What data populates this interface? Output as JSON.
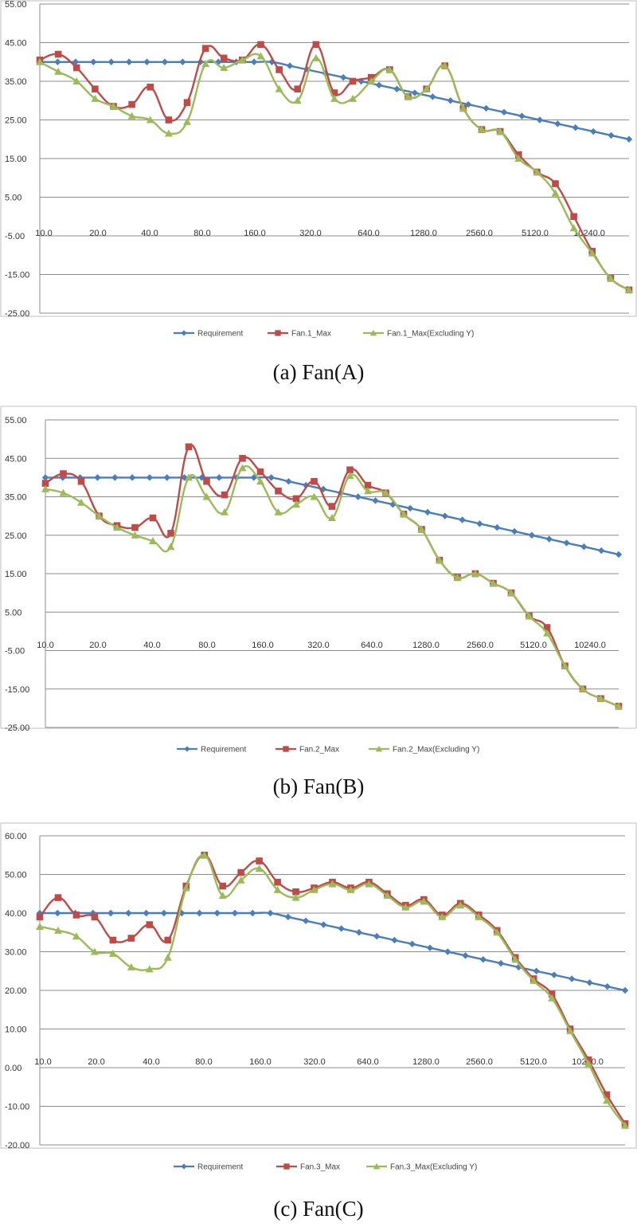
{
  "colors": {
    "requirement": "#4a7ebb",
    "max": "#be4b48",
    "excl": "#9bbb59",
    "grid": "#8c8c8c",
    "frame": "#bfbfbf"
  },
  "chart_data": [
    {
      "type": "line",
      "title": "",
      "caption": "(a) Fan(A)",
      "xlabel": "",
      "ylabel": "",
      "ylim": [
        -25,
        55
      ],
      "y_ticks": [
        "55.00",
        "45.00",
        "35.00",
        "25.00",
        "15.00",
        "5.00",
        "-5.00",
        "-15.00",
        "-25.00"
      ],
      "x_tick_labels": [
        "10.0",
        "20.0",
        "40.0",
        "80.0",
        "160.0",
        "320.0",
        "640.0",
        "1280.0",
        "2560.0",
        "5120.0",
        "10240.0"
      ],
      "series": [
        {
          "name": "Requirement",
          "marker": "diamond",
          "values": [
            40,
            40,
            40,
            40,
            40,
            40,
            40,
            40,
            40,
            40,
            40,
            40,
            40,
            40,
            39,
            38,
            37,
            36,
            35,
            34,
            33,
            32,
            31,
            30,
            29,
            28,
            27,
            26,
            25,
            24,
            23,
            22,
            21,
            20
          ]
        },
        {
          "name": "Fan.1_Max",
          "marker": "square",
          "values": [
            40.5,
            42,
            38.5,
            33,
            28.5,
            29,
            33.5,
            25,
            29.5,
            43.5,
            41,
            40.5,
            44.5,
            38,
            33,
            44.5,
            32,
            35,
            36,
            38,
            31,
            33,
            39,
            28,
            22.5,
            22,
            16,
            11.5,
            8.5,
            0,
            -9,
            -16,
            -19
          ]
        },
        {
          "name": "Fan.1_Max(Excluding Y)",
          "marker": "triangle",
          "values": [
            40,
            37.5,
            35,
            30.5,
            28.5,
            26,
            25,
            21.5,
            24.5,
            39.5,
            38.5,
            40.5,
            41.5,
            33,
            30,
            41,
            30.5,
            30.5,
            35,
            38,
            31,
            33,
            39,
            28,
            22.5,
            22,
            15,
            11.5,
            6,
            -3,
            -9.5,
            -16,
            -19
          ]
        }
      ]
    },
    {
      "type": "line",
      "title": "",
      "caption": "(b) Fan(B)",
      "xlabel": "",
      "ylabel": "",
      "ylim": [
        -25,
        55
      ],
      "y_ticks": [
        "55.00",
        "45.00",
        "35.00",
        "25.00",
        "15.00",
        "5.00",
        "-5.00",
        "-15.00",
        "-25.00"
      ],
      "x_tick_labels": [
        "10.0",
        "20.0",
        "40.0",
        "80.0",
        "160.0",
        "320.0",
        "640.0",
        "1280.0",
        "2560.0",
        "5120.0",
        "10240.0"
      ],
      "series": [
        {
          "name": "Requirement",
          "marker": "diamond",
          "values": [
            40,
            40,
            40,
            40,
            40,
            40,
            40,
            40,
            40,
            40,
            40,
            40,
            40,
            40,
            39,
            38,
            37,
            36,
            35,
            34,
            33,
            32,
            31,
            30,
            29,
            28,
            27,
            26,
            25,
            24,
            23,
            22,
            21,
            20
          ]
        },
        {
          "name": "Fan.2_Max",
          "marker": "square",
          "values": [
            38.5,
            41,
            39,
            30,
            27.5,
            27,
            29.5,
            25.5,
            48,
            39,
            35.5,
            45,
            41.5,
            36.5,
            34.5,
            39,
            32.5,
            42,
            38,
            36,
            30.5,
            26.5,
            18.5,
            14,
            15,
            12.5,
            10,
            4,
            1,
            -9,
            -15,
            -17.5,
            -19.5
          ]
        },
        {
          "name": "Fan.2_Max(Excluding Y)",
          "marker": "triangle",
          "values": [
            37,
            36,
            33.5,
            30,
            27,
            25,
            23.5,
            22,
            40,
            35,
            31,
            42.5,
            39,
            31,
            33,
            35,
            29.5,
            40.5,
            36.5,
            36,
            30.5,
            26.5,
            18.5,
            14,
            15,
            12.5,
            10,
            4,
            -0.5,
            -9,
            -15,
            -17.5,
            -19.5
          ]
        }
      ]
    },
    {
      "type": "line",
      "title": "",
      "caption": "(c) Fan(C)",
      "xlabel": "",
      "ylabel": "",
      "ylim": [
        -20,
        60
      ],
      "y_ticks": [
        "60.00",
        "50.00",
        "40.00",
        "30.00",
        "20.00",
        "10.00",
        "0.00",
        "-10.00",
        "-20.00"
      ],
      "x_tick_labels": [
        "10.0",
        "20.0",
        "40.0",
        "80.0",
        "160.0",
        "320.0",
        "640.0",
        "1280.0",
        "2560.0",
        "5120.0",
        "10240.0"
      ],
      "series": [
        {
          "name": "Requirement",
          "marker": "diamond",
          "values": [
            40,
            40,
            40,
            40,
            40,
            40,
            40,
            40,
            40,
            40,
            40,
            40,
            40,
            40,
            39,
            38,
            37,
            36,
            35,
            34,
            33,
            32,
            31,
            30,
            29,
            28,
            27,
            26,
            25,
            24,
            23,
            22,
            21,
            20
          ]
        },
        {
          "name": "Fan.3_Max",
          "marker": "square",
          "values": [
            39,
            44,
            39.5,
            39,
            33,
            33.5,
            37,
            33,
            47,
            55,
            47,
            50.5,
            53.5,
            48,
            45.5,
            46.5,
            48,
            46.5,
            48,
            45,
            42,
            43.5,
            39.5,
            42.5,
            39.5,
            35.5,
            28.5,
            23,
            19,
            10,
            2,
            -7,
            -14.5
          ]
        },
        {
          "name": "Fan.3_Max(Excluding Y)",
          "marker": "triangle",
          "values": [
            36.5,
            35.5,
            34,
            30,
            29.5,
            26,
            25.5,
            28.5,
            46.5,
            55,
            44.5,
            48.5,
            51.5,
            46,
            44,
            46,
            47.5,
            46,
            47.5,
            44.5,
            41.5,
            43,
            39,
            42,
            39,
            35,
            28,
            22.5,
            18,
            9.5,
            1,
            -8.5,
            -15
          ]
        }
      ]
    }
  ]
}
